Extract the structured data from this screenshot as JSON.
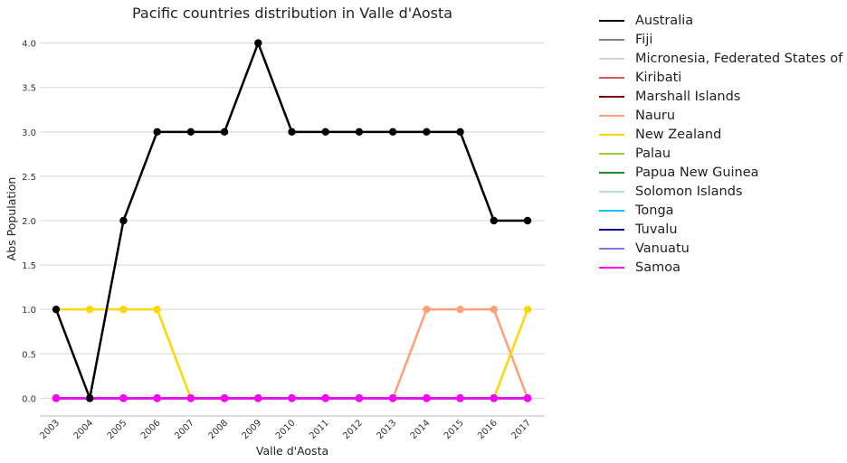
{
  "chart_data": {
    "type": "line",
    "title": "Pacific countries distribution in Valle d'Aosta",
    "xlabel": "Valle d'Aosta",
    "ylabel": "Abs Population",
    "categories": [
      "2003",
      "2004",
      "2005",
      "2006",
      "2007",
      "2008",
      "2009",
      "2010",
      "2011",
      "2012",
      "2013",
      "2014",
      "2015",
      "2016",
      "2017"
    ],
    "ylim": [
      -0.2,
      4.2
    ],
    "yticks": [
      "0.0",
      "0.5",
      "1.0",
      "1.5",
      "2.0",
      "2.5",
      "3.0",
      "3.5",
      "4.0"
    ],
    "grid": "horizontal",
    "legend_position": "outside-right",
    "series": [
      {
        "name": "Australia",
        "color": "#000000",
        "values": [
          1,
          0,
          2,
          3,
          3,
          3,
          4,
          3,
          3,
          3,
          3,
          3,
          3,
          2,
          2
        ]
      },
      {
        "name": "Fiji",
        "color": "#808080",
        "values": [
          0,
          0,
          0,
          0,
          0,
          0,
          0,
          0,
          0,
          0,
          0,
          0,
          0,
          0,
          0
        ]
      },
      {
        "name": "Micronesia, Federated States of",
        "color": "#d3d3d3",
        "values": [
          0,
          0,
          0,
          0,
          0,
          0,
          0,
          0,
          0,
          0,
          0,
          0,
          0,
          0,
          0
        ]
      },
      {
        "name": "Kiribati",
        "color": "#cd5c5c",
        "values": [
          0,
          0,
          0,
          0,
          0,
          0,
          0,
          0,
          0,
          0,
          0,
          0,
          0,
          0,
          0
        ]
      },
      {
        "name": "Marshall Islands",
        "color": "#800000",
        "values": [
          0,
          0,
          0,
          0,
          0,
          0,
          0,
          0,
          0,
          0,
          0,
          0,
          0,
          0,
          0
        ]
      },
      {
        "name": "Nauru",
        "color": "#ffa07a",
        "values": [
          0,
          0,
          0,
          0,
          0,
          0,
          0,
          0,
          0,
          0,
          0,
          1,
          1,
          1,
          0
        ]
      },
      {
        "name": "New Zealand",
        "color": "#ffd700",
        "values": [
          1,
          1,
          1,
          1,
          0,
          0,
          0,
          0,
          0,
          0,
          0,
          0,
          0,
          0,
          1
        ]
      },
      {
        "name": "Palau",
        "color": "#9acd32",
        "values": [
          0,
          0,
          0,
          0,
          0,
          0,
          0,
          0,
          0,
          0,
          0,
          0,
          0,
          0,
          0
        ]
      },
      {
        "name": "Papua New Guinea",
        "color": "#228b22",
        "values": [
          0,
          0,
          0,
          0,
          0,
          0,
          0,
          0,
          0,
          0,
          0,
          0,
          0,
          0,
          0
        ]
      },
      {
        "name": "Solomon Islands",
        "color": "#b0e0e6",
        "values": [
          0,
          0,
          0,
          0,
          0,
          0,
          0,
          0,
          0,
          0,
          0,
          0,
          0,
          0,
          0
        ]
      },
      {
        "name": "Tonga",
        "color": "#00bfff",
        "values": [
          0,
          0,
          0,
          0,
          0,
          0,
          0,
          0,
          0,
          0,
          0,
          0,
          0,
          0,
          0
        ]
      },
      {
        "name": "Tuvalu",
        "color": "#00008b",
        "values": [
          0,
          0,
          0,
          0,
          0,
          0,
          0,
          0,
          0,
          0,
          0,
          0,
          0,
          0,
          0
        ]
      },
      {
        "name": "Vanuatu",
        "color": "#9370db",
        "values": [
          0,
          0,
          0,
          0,
          0,
          0,
          0,
          0,
          0,
          0,
          0,
          0,
          0,
          0,
          0
        ]
      },
      {
        "name": "Samoa",
        "color": "#ff00ff",
        "values": [
          0,
          0,
          0,
          0,
          0,
          0,
          0,
          0,
          0,
          0,
          0,
          0,
          0,
          0,
          0
        ]
      }
    ]
  }
}
